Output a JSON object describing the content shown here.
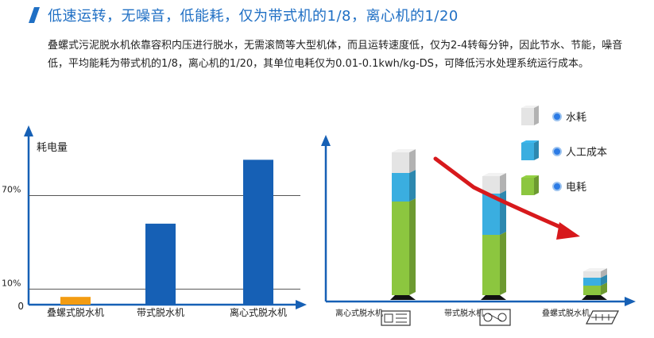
{
  "header": {
    "title": "低速运转，无噪音，低能耗，仅为带式机的1/8，离心机的1/20",
    "accent": "#1f6fc4"
  },
  "description": {
    "text": "叠螺式污泥脱水机依靠容积内压进行脱水，无需滚筒等大型机体，而且运转速度低，仅为2-4转每分钟，因此节水、节能，噪音低，平均能耗为带式机的1/8，离心机的1/20，其单位电耗仅为0.01-0.1kwh/kg-DS，可降低污水处理系统运行成本。"
  },
  "chart_data": [
    {
      "type": "bar",
      "ylabel": "耗电量",
      "origin_label": "0",
      "reference_lines": [
        {
          "label": "10%",
          "value": 10
        },
        {
          "label": "70%",
          "value": 70
        }
      ],
      "categories": [
        "叠螺式脱水机",
        "带式脱水机",
        "离心式脱水机"
      ],
      "values": [
        5,
        52,
        93
      ],
      "colors": [
        "#f39c12",
        "#1660b5",
        "#1660b5"
      ],
      "ylim": [
        0,
        110
      ]
    },
    {
      "type": "bar",
      "stacked": true,
      "categories": [
        "离心式脱水机",
        "带式脱水机",
        "叠螺式脱水机"
      ],
      "series": [
        {
          "name": "电耗",
          "values": [
            59,
            38,
            6
          ],
          "color": "#8cc63f"
        },
        {
          "name": "人工成本",
          "values": [
            18,
            26,
            5
          ],
          "color": "#3aaee0"
        },
        {
          "name": "水耗",
          "values": [
            13,
            11,
            4
          ],
          "color": "#e4e4e4"
        }
      ],
      "legend": [
        "水耗",
        "人工成本",
        "电耗"
      ],
      "legend_position": "top-right",
      "trend_arrow": true,
      "trend_color": "#d7191c"
    }
  ]
}
